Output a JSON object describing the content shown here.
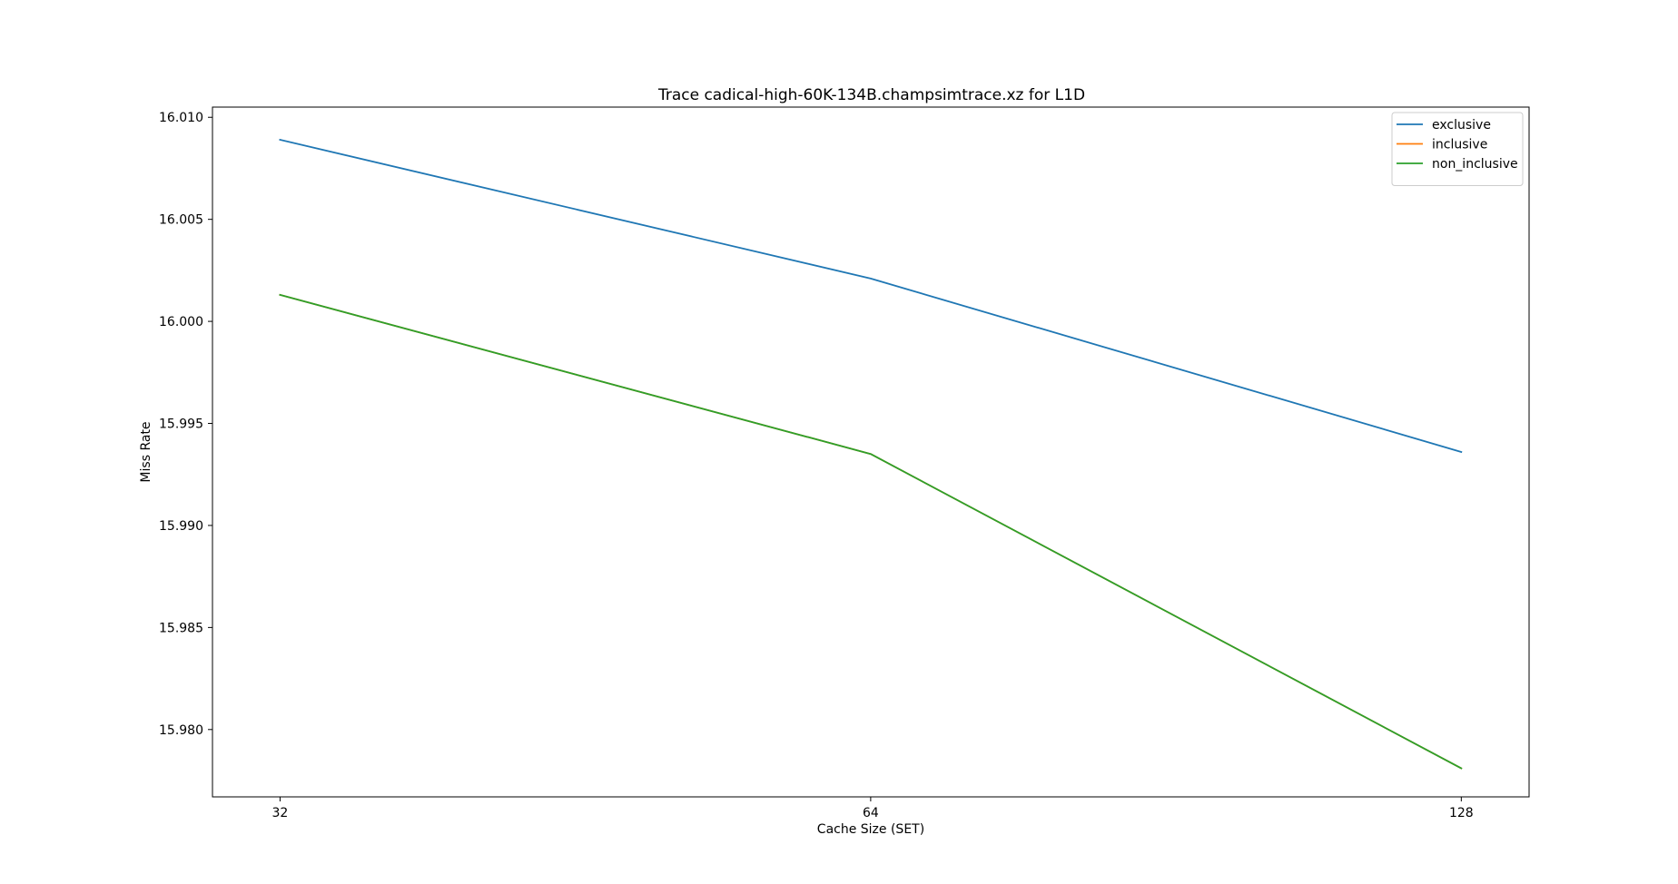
{
  "chart_data": {
    "type": "line",
    "title": "Trace cadical-high-60K-134B.champsimtrace.xz for L1D",
    "xlabel": "Cache Size (SET)",
    "ylabel": "Miss Rate",
    "x": [
      32,
      64,
      128
    ],
    "x_scale": "log2",
    "x_ticks": [
      32,
      64,
      128
    ],
    "x_tick_labels": [
      "32",
      "64",
      "128"
    ],
    "xlim": [
      29.56,
      138.6
    ],
    "ylim": [
      15.9767,
      16.0105
    ],
    "y_ticks": [
      15.98,
      15.985,
      15.99,
      15.995,
      16.0,
      16.005,
      16.01
    ],
    "y_tick_labels": [
      "15.980",
      "15.985",
      "15.990",
      "15.995",
      "16.000",
      "16.005",
      "16.010"
    ],
    "grid": false,
    "legend_position": "top-right",
    "series": [
      {
        "name": "exclusive",
        "color": "#1f77b4",
        "values": [
          16.0089,
          16.0021,
          15.9936
        ]
      },
      {
        "name": "inclusive",
        "color": "#ff7f0e",
        "values": [
          16.0013,
          15.9935,
          15.9781
        ]
      },
      {
        "name": "non_inclusive",
        "color": "#2ca02c",
        "values": [
          16.0013,
          15.9935,
          15.9781
        ]
      }
    ]
  }
}
